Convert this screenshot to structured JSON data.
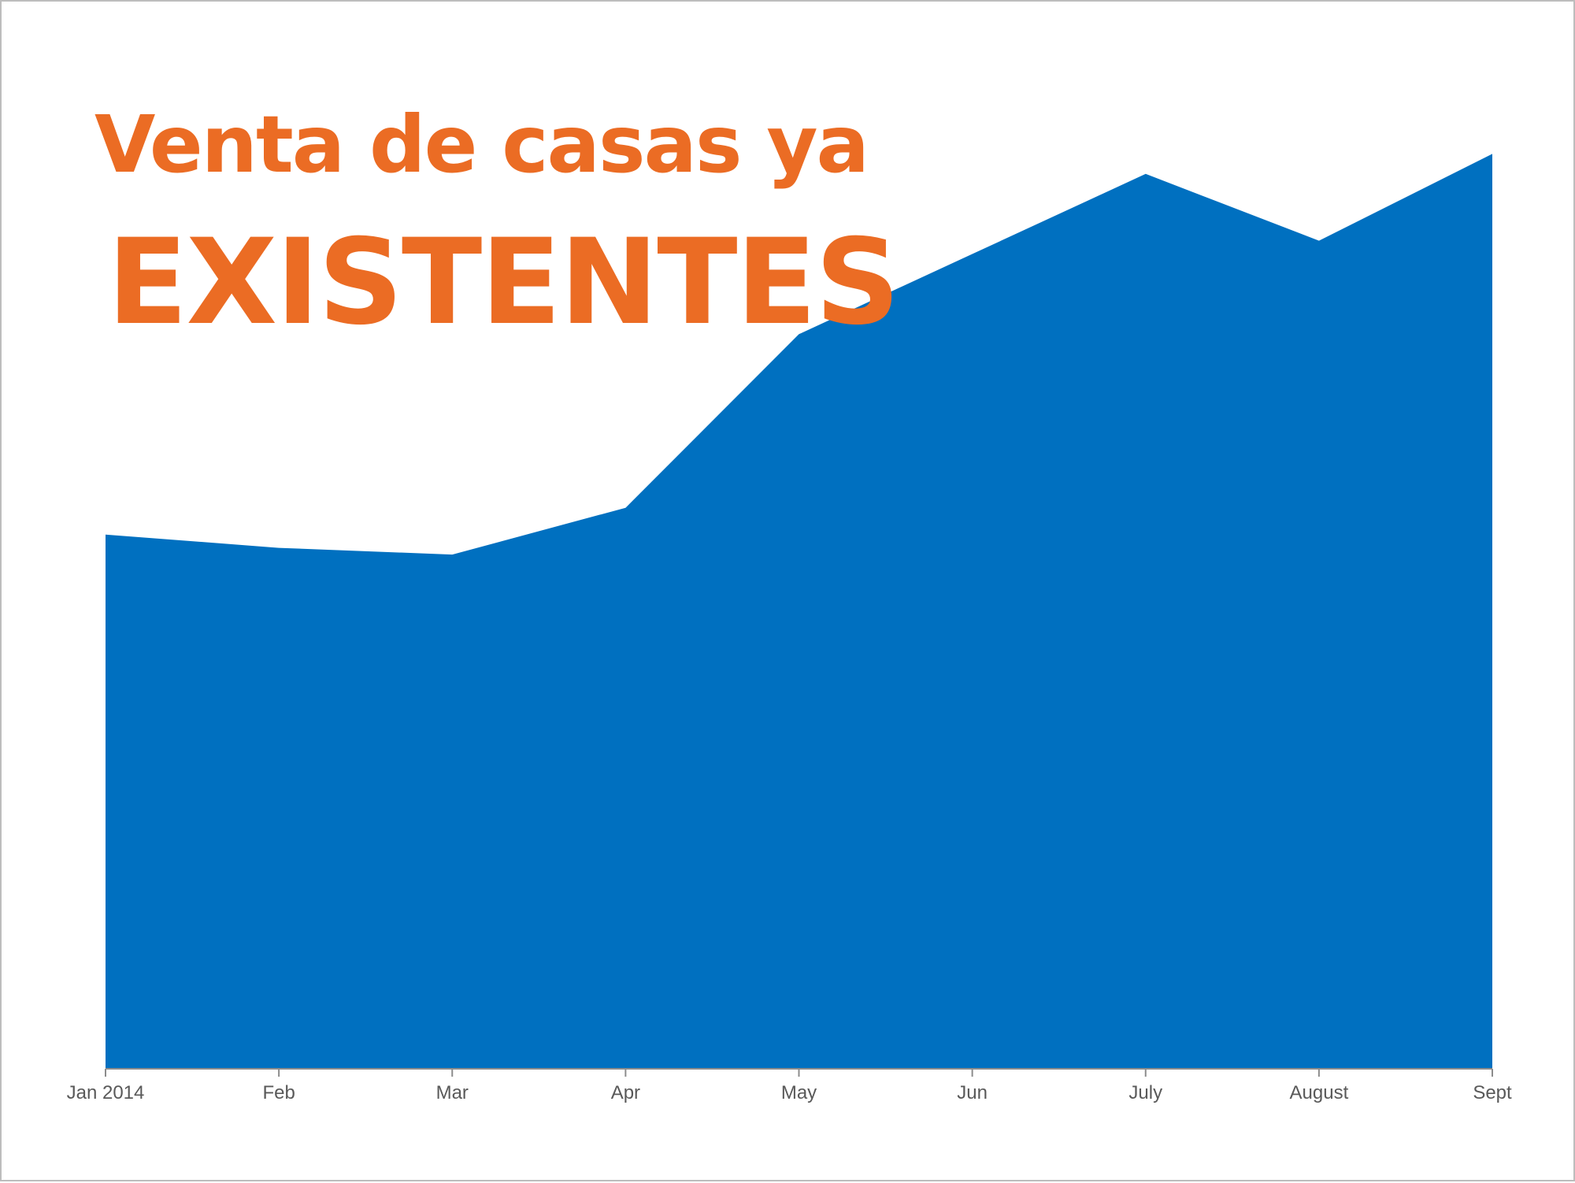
{
  "title": {
    "line1": "Venta de casas ya",
    "line2": "EXISTENTES",
    "color": "#eb6c24"
  },
  "chart_data": {
    "type": "area",
    "categories": [
      "Jan 2014",
      "Feb",
      "Mar",
      "Apr",
      "May",
      "Jun",
      "July",
      "August",
      "Sept"
    ],
    "series": [
      {
        "values": [
          4.6,
          4.59,
          4.585,
          4.62,
          4.75,
          4.81,
          4.87,
          4.82,
          4.885
        ],
        "color": "#0070c0"
      }
    ],
    "ylim": [
      4.2,
      4.92
    ],
    "y_axis_visible": false,
    "grid": false,
    "legend": "none",
    "axis_color": "#8c8c8c",
    "tick_label_color": "#595959"
  }
}
